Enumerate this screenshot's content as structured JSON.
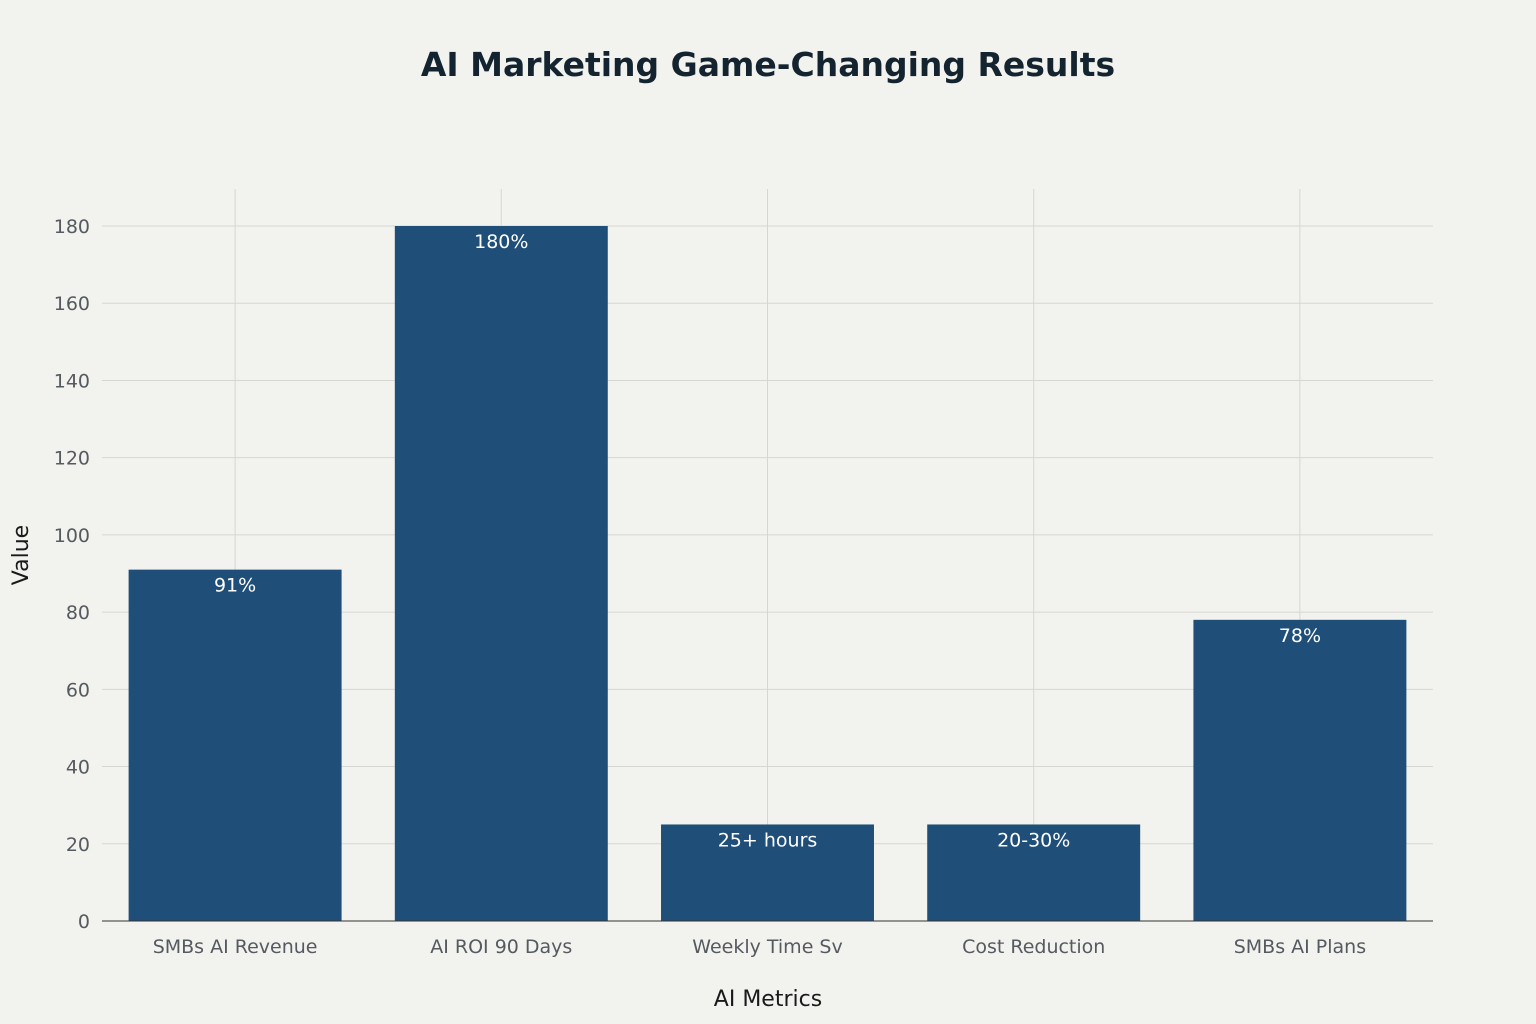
{
  "chart_data": {
    "type": "bar",
    "title": "AI Marketing Game-Changing Results",
    "xlabel": "AI Metrics",
    "ylabel": "Value",
    "categories": [
      "SMBs AI Revenue",
      "AI ROI 90 Days",
      "Weekly Time Sv",
      "Cost Reduction",
      "SMBs AI Plans"
    ],
    "values": [
      91,
      180,
      25,
      25,
      78
    ],
    "data_labels": [
      "91%",
      "180%",
      "25+ hours",
      "20-30%",
      "78%"
    ],
    "ylim": [
      0,
      190
    ],
    "yticks": [
      0,
      20,
      40,
      60,
      80,
      100,
      120,
      140,
      160,
      180
    ],
    "grid": true,
    "bar_color": "#1f4e79"
  }
}
